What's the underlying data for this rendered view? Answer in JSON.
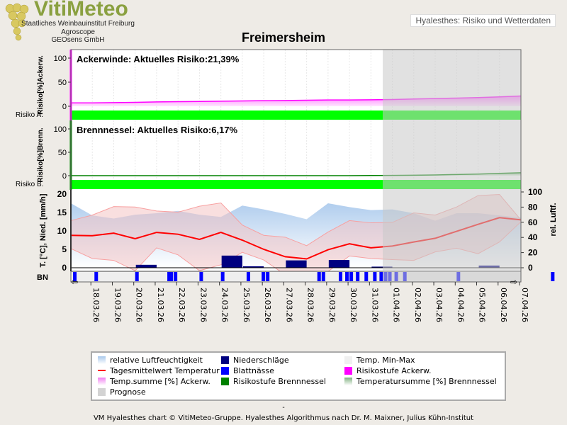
{
  "header": {
    "logo": "VitiMeteo",
    "org1": "Staatliches Weinbauinstitut Freiburg",
    "org2": "Agroscope",
    "org3": "GEOsens GmbH",
    "top_right": "Hyalesthes: Risiko und Wetterdaten",
    "title": "Freimersheim"
  },
  "chart_data": [
    {
      "type": "area",
      "panel": "Ackerwinde",
      "label": "Ackerwinde:  Aktuelles Risiko:21,39%",
      "ylabel": "Risiko[%]Ackerw.",
      "band_label": "Risiko A.",
      "ylim": [
        0,
        100
      ],
      "yticks": [
        "0",
        "50",
        "100"
      ],
      "values": [
        7,
        7,
        7.5,
        8,
        9,
        9.5,
        10,
        10.5,
        11,
        11.5,
        12,
        12.5,
        13,
        13,
        13.5,
        14,
        15,
        16,
        17,
        18,
        19.5,
        21.39
      ],
      "risk_level_color": "#00ff00"
    },
    {
      "type": "area",
      "panel": "Brennnessel",
      "label": "Brennnessel:  Aktuelles Risiko:6,17%",
      "ylabel": "Risiko[%]Brenn.",
      "band_label": "Risiko B.",
      "ylim": [
        0,
        100
      ],
      "yticks": [
        "0",
        "50",
        "100"
      ],
      "values": [
        0,
        0,
        0,
        0,
        0,
        0,
        0,
        0,
        0,
        0,
        0,
        0,
        0,
        0,
        0.3,
        0.6,
        1,
        1.5,
        2.5,
        3.5,
        5,
        6.17
      ],
      "risk_level_color": "#00ff00"
    },
    {
      "type": "line",
      "panel": "Wetter",
      "ylabel": "T. [°C], Nied. [mm/h]",
      "y2label": "rel. Luftf.",
      "ylim": [
        0,
        20
      ],
      "y2lim": [
        0,
        100
      ],
      "yticks": [
        "0",
        "5",
        "10",
        "15",
        "20"
      ],
      "y2ticks": [
        "0",
        "20",
        "40",
        "60",
        "80",
        "100"
      ],
      "bn_label": "BN",
      "dates": [
        "18.03.26",
        "19.03.26",
        "20.03.26",
        "21.03.26",
        "22.03.26",
        "23.03.26",
        "24.03.26",
        "25.03.26",
        "26.03.26",
        "27.03.26",
        "28.03.26",
        "29.03.26",
        "30.03.26",
        "31.03.26",
        "01.04.26",
        "02.04.26",
        "03.04.26",
        "04.04.26",
        "05.04.26",
        "06.04.26",
        "07.04.26"
      ],
      "temp_mean": [
        8.8,
        8.7,
        9.4,
        7.9,
        9.6,
        9.1,
        7.7,
        9.6,
        7.5,
        5.0,
        3.0,
        2.4,
        4.9,
        6.5,
        5.4,
        5.9,
        7.0,
        8.0,
        9.9,
        11.8,
        13.6,
        13.0
      ],
      "temp_max": [
        12.8,
        14.3,
        16.6,
        16.5,
        15.4,
        15.1,
        16.7,
        17.6,
        11.6,
        8.8,
        8.3,
        6.0,
        9.7,
        12.8,
        12.2,
        12.3,
        14.9,
        14.3,
        16.5,
        19.6,
        19.9,
        13.0
      ],
      "temp_min": [
        5.2,
        2.5,
        2.0,
        -0.8,
        5.4,
        3.5,
        -0.8,
        0.8,
        4.2,
        2.1,
        -1.9,
        -2.2,
        -1.0,
        3.2,
        2.5,
        2.2,
        2.0,
        4.3,
        5.3,
        3.8,
        7.0,
        12.5
      ],
      "humidity": [
        85,
        69,
        65,
        70,
        72,
        75,
        70,
        67,
        82,
        77,
        71,
        64,
        85,
        80,
        76,
        77,
        72,
        62,
        72,
        72,
        69,
        66
      ],
      "precip": [
        0,
        0,
        0,
        0.8,
        0,
        0,
        0,
        3.3,
        0.4,
        0,
        2.0,
        0,
        2.1,
        0,
        0.3,
        0,
        0,
        0,
        0,
        0.6,
        0
      ],
      "leaf_wetness_days": [
        0.1,
        1.1,
        3.0,
        4.5,
        4.6,
        4.8,
        6.0,
        7.0,
        8.2,
        8.9,
        9.1,
        11.5,
        11.7,
        12.5,
        12.8,
        13.0,
        13.3,
        13.7,
        14.1,
        14.4,
        14.6,
        14.8,
        15.1,
        15.5,
        18.0,
        22.4
      ],
      "forecast_start_index": 14.2
    }
  ],
  "legend": [
    "relative Luftfeuchtigkeit",
    "Niederschläge",
    "Temp. Min-Max",
    "Tagesmittelwert Temperatur",
    "Blattnässe",
    "Risikostufe Ackerw.",
    "Temp.summe [%] Ackerw.",
    "Risikostufe Brennnessel",
    "Temperatursumme [%] Brennnessel",
    "Prognose"
  ],
  "colors": {
    "humidity": "#a8c8ec",
    "precip": "#000080",
    "tminmax": "#f8c8c8",
    "tmean": "#ff0000",
    "leafwet": "#0000ff",
    "risk_acker": "#ff00ff",
    "risk_brenn": "#008000",
    "forecast": "#d3d3d3"
  },
  "footer": "VM Hyalesthes chart © VitiMeteo-Gruppe. Hyalesthes Algorithmus nach Dr. M. Maixner, Julius Kühn-Institut",
  "dash": "-"
}
